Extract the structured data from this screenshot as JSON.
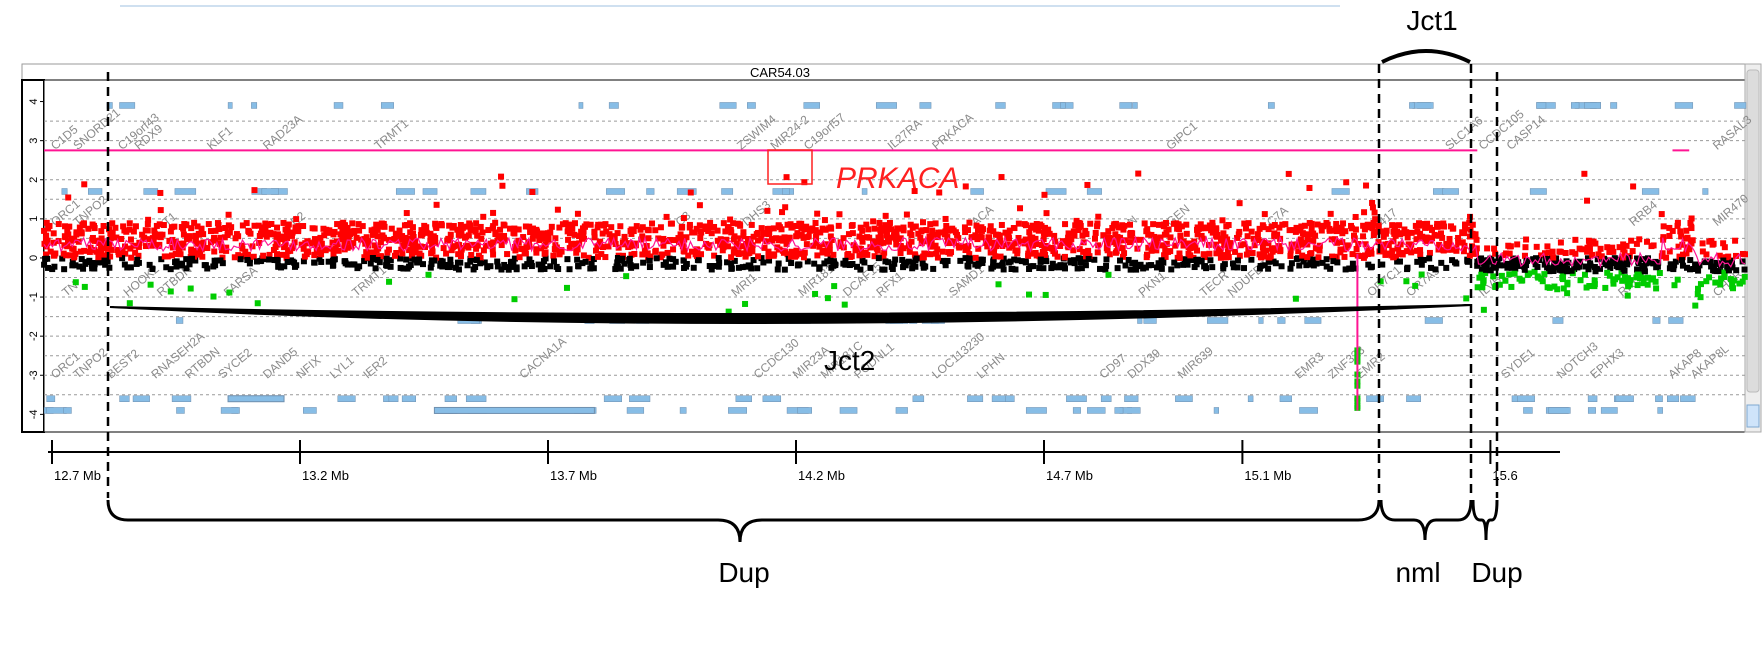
{
  "chart_data": {
    "type": "scatter",
    "title": "CAR54.03",
    "xlabel": "",
    "ylabel": "",
    "xlim": [
      12.6,
      15.65
    ],
    "ylim": [
      -4.4,
      4.5
    ],
    "x_ticks": [
      {
        "value": 12.7,
        "label": "12.7 Mb"
      },
      {
        "value": 13.2,
        "label": "13.2 Mb"
      },
      {
        "value": 13.7,
        "label": "13.7 Mb"
      },
      {
        "value": 14.2,
        "label": "14.2 Mb"
      },
      {
        "value": 14.7,
        "label": "14.7 Mb"
      },
      {
        "value": 15.1,
        "label": "15.1 Mb"
      },
      {
        "value": 15.6,
        "label": "15.6"
      }
    ],
    "y_ticks": [
      4,
      3,
      2,
      1,
      0,
      -1,
      -2,
      -3,
      -4
    ],
    "grid_y": [
      3.5,
      3,
      2,
      1.5,
      1,
      0.5,
      -0.5,
      -1,
      -1.5,
      -2,
      -2.5,
      -3,
      -3.5
    ],
    "series": [
      {
        "name": "",
        "color": "#ff0000",
        "values_range": [
          0,
          1.5
        ]
      },
      {
        "name": "",
        "color": "#000000",
        "values_range": [
          -0.3,
          0
        ]
      },
      {
        "name": "",
        "color": "#00cc00",
        "values_range": [
          -1.4,
          -0.3
        ]
      },
      {
        "name": "",
        "color": "#ff1493",
        "values_range": [
          0,
          0.5
        ]
      }
    ],
    "segments": [
      {
        "x_start": 12.6,
        "x_end": 15.17,
        "y": 2.75,
        "color": "#ff1493"
      },
      {
        "x_start": 15.52,
        "x_end": 15.55,
        "y": 2.75,
        "color": "#ff1493"
      }
    ],
    "genes_top": [
      {
        "x": 12.62,
        "label": "C1D5"
      },
      {
        "x": 12.66,
        "label": "SNORD21"
      },
      {
        "x": 12.74,
        "label": "C19orf43"
      },
      {
        "x": 12.77,
        "label": "RDX9"
      },
      {
        "x": 12.9,
        "label": "KLF1"
      },
      {
        "x": 13.0,
        "label": "RAD23A"
      },
      {
        "x": 13.2,
        "label": "TRMT1"
      },
      {
        "x": 13.85,
        "label": "ZSWIM4"
      },
      {
        "x": 13.91,
        "label": "MIR24-2"
      },
      {
        "x": 13.97,
        "label": "C19orf57"
      },
      {
        "x": 14.12,
        "label": "IL27RA"
      },
      {
        "x": 14.2,
        "label": "PRKACA"
      },
      {
        "x": 14.62,
        "label": "GIPC1"
      },
      {
        "x": 15.12,
        "label": "SLC1A6"
      },
      {
        "x": 15.18,
        "label": "CCDC105"
      },
      {
        "x": 15.23,
        "label": "CASP14"
      },
      {
        "x": 15.6,
        "label": "RASAL3"
      }
    ],
    "genes_mid": [
      {
        "x": 12.62,
        "label": "ORC1"
      },
      {
        "x": 12.66,
        "label": "TNPO2"
      },
      {
        "x": 12.82,
        "label": "T1"
      },
      {
        "x": 13.05,
        "label": "E2"
      },
      {
        "x": 13.74,
        "label": "C3"
      },
      {
        "x": 13.86,
        "label": "DHS3"
      },
      {
        "x": 14.27,
        "label": "ACA"
      },
      {
        "x": 14.55,
        "label": "N"
      },
      {
        "x": 14.62,
        "label": "GEN"
      },
      {
        "x": 14.8,
        "label": "C7A"
      },
      {
        "x": 15.0,
        "label": "417"
      },
      {
        "x": 15.45,
        "label": "RRB4"
      },
      {
        "x": 15.6,
        "label": "MIR470"
      }
    ],
    "genes_lower": [
      {
        "x": 12.64,
        "label": "TN"
      },
      {
        "x": 12.75,
        "label": "HOOK2"
      },
      {
        "x": 12.81,
        "label": "RTBDN"
      },
      {
        "x": 12.93,
        "label": "FARSA"
      },
      {
        "x": 13.16,
        "label": "TRMT1"
      },
      {
        "x": 13.84,
        "label": "MRI1"
      },
      {
        "x": 13.96,
        "label": "MIR181D"
      },
      {
        "x": 14.04,
        "label": "DCAF15"
      },
      {
        "x": 14.1,
        "label": "RFX1"
      },
      {
        "x": 14.23,
        "label": "SAMD1"
      },
      {
        "x": 14.57,
        "label": "PKN1"
      },
      {
        "x": 14.68,
        "label": "TECR"
      },
      {
        "x": 14.73,
        "label": "NDUFB7"
      },
      {
        "x": 14.98,
        "label": "OR7C1"
      },
      {
        "x": 15.05,
        "label": "OR7A5"
      },
      {
        "x": 15.18,
        "label": "ILVBL"
      },
      {
        "x": 15.43,
        "label": "RRD"
      },
      {
        "x": 15.6,
        "label": "CHER"
      }
    ],
    "genes_bottom": [
      {
        "x": 12.62,
        "label": "ORC1"
      },
      {
        "x": 12.66,
        "label": "TNPO2"
      },
      {
        "x": 12.72,
        "label": "BEST2"
      },
      {
        "x": 12.8,
        "label": "RNASEH2A"
      },
      {
        "x": 12.86,
        "label": "RTBDN"
      },
      {
        "x": 12.92,
        "label": "SYCE2"
      },
      {
        "x": 13.0,
        "label": "DAND5"
      },
      {
        "x": 13.06,
        "label": "NFIX"
      },
      {
        "x": 13.12,
        "label": "LYL1"
      },
      {
        "x": 13.18,
        "label": "IER2"
      },
      {
        "x": 13.46,
        "label": "CACNA1A"
      },
      {
        "x": 13.88,
        "label": "CCDC130"
      },
      {
        "x": 13.95,
        "label": "MIR23A"
      },
      {
        "x": 14.0,
        "label": "MIR181C"
      },
      {
        "x": 14.06,
        "label": "PODNL1"
      },
      {
        "x": 14.2,
        "label": "LOC113230"
      },
      {
        "x": 14.28,
        "label": "LPHN"
      },
      {
        "x": 14.5,
        "label": "CD97"
      },
      {
        "x": 14.55,
        "label": "DDX39"
      },
      {
        "x": 14.64,
        "label": "MIR639"
      },
      {
        "x": 14.85,
        "label": "EMR3"
      },
      {
        "x": 14.91,
        "label": "ZNF333"
      },
      {
        "x": 14.96,
        "label": "EMR2"
      },
      {
        "x": 15.22,
        "label": "SYDE1"
      },
      {
        "x": 15.32,
        "label": "NOTCH3"
      },
      {
        "x": 15.38,
        "label": "EPHX3"
      },
      {
        "x": 15.52,
        "label": "AKAP8"
      },
      {
        "x": 15.56,
        "label": "AKAP8L"
      }
    ]
  },
  "annotations": {
    "gene_highlight": "PRKACA",
    "jct1": "Jct1",
    "jct2": "Jct2",
    "brace_labels": [
      "Dup",
      "nml",
      "Dup"
    ]
  },
  "colors": {
    "gain": "#ff0000",
    "loss": "#00cc00",
    "neutral": "#000000",
    "segment": "#ff1493",
    "gene_box": "#87bde6"
  }
}
